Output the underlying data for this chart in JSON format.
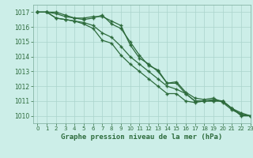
{
  "title": "Graphe pression niveau de la mer (hPa)",
  "bg_color": "#cceee8",
  "grid_color": "#aad4cc",
  "line_color": "#2d6b3c",
  "spine_color": "#7aaa9a",
  "xlim": [
    -0.5,
    23
  ],
  "ylim": [
    1009.5,
    1017.5
  ],
  "yticks": [
    1010,
    1011,
    1012,
    1013,
    1014,
    1015,
    1016,
    1017
  ],
  "xticks": [
    0,
    1,
    2,
    3,
    4,
    5,
    6,
    7,
    8,
    9,
    10,
    11,
    12,
    13,
    14,
    15,
    16,
    17,
    18,
    19,
    20,
    21,
    22,
    23
  ],
  "series": [
    [
      1017.0,
      1017.0,
      1017.0,
      1016.8,
      1016.6,
      1016.6,
      1016.7,
      1016.7,
      1016.4,
      1016.1,
      1014.8,
      1013.9,
      1013.5,
      1013.0,
      1012.2,
      1012.2,
      1011.5,
      1011.0,
      1011.0,
      1011.1,
      1011.0,
      1010.5,
      1010.0,
      1010.0
    ],
    [
      1017.0,
      1017.0,
      1016.9,
      1016.7,
      1016.6,
      1016.5,
      1016.6,
      1016.8,
      1016.2,
      1015.9,
      1015.0,
      1014.1,
      1013.4,
      1013.1,
      1012.2,
      1012.3,
      1011.6,
      1011.2,
      1011.1,
      1011.2,
      1010.9,
      1010.4,
      1010.1,
      1010.0
    ],
    [
      1017.0,
      1017.0,
      1016.6,
      1016.5,
      1016.4,
      1016.3,
      1016.1,
      1015.6,
      1015.3,
      1014.7,
      1014.0,
      1013.5,
      1013.0,
      1012.5,
      1012.0,
      1011.8,
      1011.5,
      1011.0,
      1011.0,
      1011.0,
      1011.0,
      1010.5,
      1010.1,
      1010.0
    ],
    [
      1017.0,
      1017.0,
      1016.6,
      1016.5,
      1016.4,
      1016.2,
      1015.9,
      1015.1,
      1014.9,
      1014.1,
      1013.5,
      1013.0,
      1012.5,
      1012.0,
      1011.5,
      1011.5,
      1011.0,
      1010.9,
      1011.0,
      1011.0,
      1011.0,
      1010.5,
      1010.2,
      1010.0
    ]
  ]
}
